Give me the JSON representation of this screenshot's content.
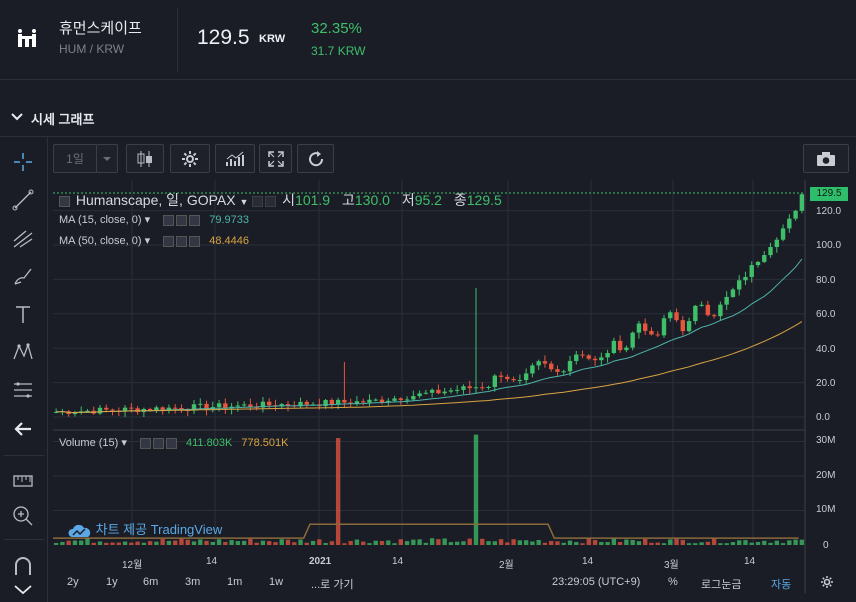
{
  "header": {
    "coin_name": "휴먼스케이프",
    "pair": "HUM / KRW",
    "price": "129.5",
    "price_unit": "KRW",
    "change_pct": "32.35%",
    "change_abs": "31.7 KRW"
  },
  "section": {
    "title": "시세 그래프"
  },
  "toolbar": {
    "interval": "1일"
  },
  "legend": {
    "title": "Humanscape, 일, GOPAX",
    "o_label": "시",
    "o": "101.9",
    "h_label": "고",
    "h": "130.0",
    "l_label": "저",
    "l": "95.2",
    "c_label": "종",
    "c": "129.5",
    "ma15_label": "MA (15, close, 0)",
    "ma15_value": "79.9733",
    "ma50_label": "MA (50, close, 0)",
    "ma50_value": "48.4446",
    "volume_label": "Volume (15)",
    "vol_a": "411.803K",
    "vol_b": "778.501K"
  },
  "price_tag": "129.5",
  "price_axis": [
    "120.0",
    "100.0",
    "80.0",
    "60.0",
    "40.0",
    "20.0",
    "0.0"
  ],
  "volume_axis": [
    "30M",
    "20M",
    "10M",
    "0"
  ],
  "time_axis": [
    "12월",
    "14",
    "2021",
    "14",
    "2월",
    "14",
    "3월",
    "14"
  ],
  "watermark": "차트 제공 TradingView",
  "bottom": {
    "ranges": [
      "2y",
      "1y",
      "6m",
      "3m",
      "1m",
      "1w",
      "...로 가기"
    ],
    "clock": "23:29:05 (UTC+9)",
    "pct": "%",
    "log": "로그눈금",
    "auto": "자동"
  },
  "colors": {
    "up": "#3fbf6a",
    "down": "#e8553f",
    "ma15": "#4fb3a9",
    "ma50": "#d9a441",
    "accent": "#5aa9e6"
  },
  "chart_data": {
    "type": "candlestick",
    "title": "Humanscape, 일, GOPAX",
    "x_ticks": [
      "12월",
      "14",
      "2021",
      "14",
      "2월",
      "14",
      "3월",
      "14"
    ],
    "y_ticks": [
      0,
      20,
      40,
      60,
      80,
      100,
      120
    ],
    "ylim": [
      -3,
      130
    ],
    "volume_ticks": [
      "0",
      "10M",
      "20M",
      "30M"
    ],
    "last_close": 129.5
  }
}
